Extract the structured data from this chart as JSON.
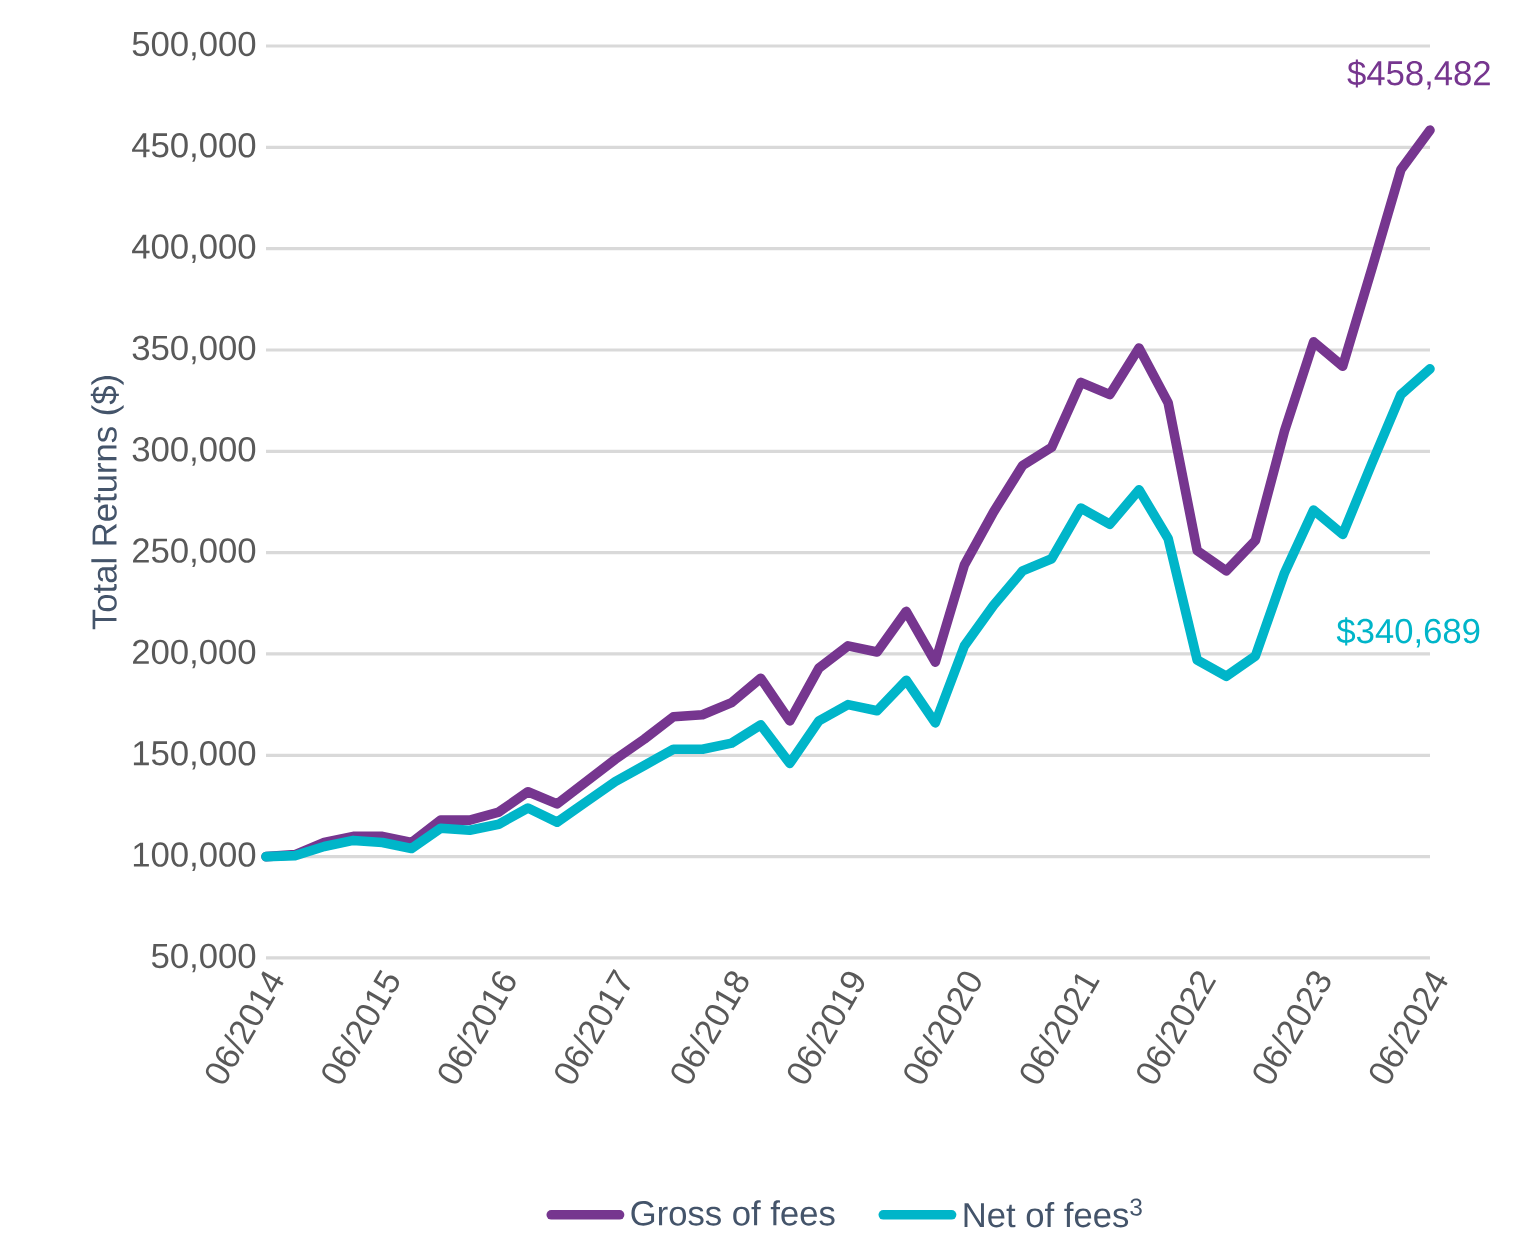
{
  "chart_data": {
    "type": "line",
    "ylabel": "Total Returns ($)",
    "categories": [
      "06/2014",
      null,
      null,
      null,
      "06/2015",
      null,
      null,
      null,
      "06/2016",
      null,
      null,
      null,
      "06/2017",
      null,
      null,
      null,
      "06/2018",
      null,
      null,
      null,
      "06/2019",
      null,
      null,
      null,
      "06/2020",
      null,
      null,
      null,
      "06/2021",
      null,
      null,
      null,
      "06/2022",
      null,
      null,
      null,
      "06/2023",
      null,
      null,
      null,
      "06/2024"
    ],
    "series": [
      {
        "name": "Gross of fees",
        "color": "#76368f",
        "values": [
          100000,
          101000,
          107000,
          110000,
          110000,
          107000,
          118000,
          118000,
          122000,
          132000,
          126000,
          137000,
          148000,
          158000,
          169000,
          170000,
          176000,
          188000,
          167000,
          193000,
          204000,
          201000,
          221000,
          196000,
          244000,
          270000,
          293000,
          302000,
          334000,
          328000,
          351000,
          324000,
          251000,
          241000,
          256000,
          310000,
          354000,
          342000,
          390000,
          439000,
          458482
        ]
      },
      {
        "name": "Net of fees$^{3}$",
        "color": "#00b5c9",
        "values": [
          100000,
          100500,
          105000,
          108000,
          107000,
          104000,
          114000,
          113000,
          116000,
          124000,
          117000,
          127000,
          137000,
          145000,
          153000,
          153000,
          156000,
          165000,
          146000,
          167000,
          175000,
          172000,
          187000,
          166000,
          204000,
          224000,
          241000,
          247000,
          272000,
          264000,
          281000,
          257000,
          197000,
          189000,
          199000,
          240000,
          271000,
          259000,
          294000,
          328000,
          340689
        ]
      }
    ],
    "ylim": [
      50000,
      500000
    ],
    "yticks": [
      {
        "value": 50000,
        "label": "50,000"
      },
      {
        "value": 100000,
        "label": "100,000"
      },
      {
        "value": 150000,
        "label": "150,000"
      },
      {
        "value": 200000,
        "label": "200,000"
      },
      {
        "value": 250000,
        "label": "250,000"
      },
      {
        "value": 300000,
        "label": "300,000"
      },
      {
        "value": 350000,
        "label": "350,000"
      },
      {
        "value": 400000,
        "label": "400,000"
      },
      {
        "value": 450000,
        "label": "450,000"
      },
      {
        "value": 500000,
        "label": "500,000"
      }
    ],
    "grid": "y",
    "legend": "bottom",
    "annotations": [
      {
        "text": "$458,482",
        "x": "06/2024",
        "y": 458482
      },
      "$340,689"
    ]
  }
}
